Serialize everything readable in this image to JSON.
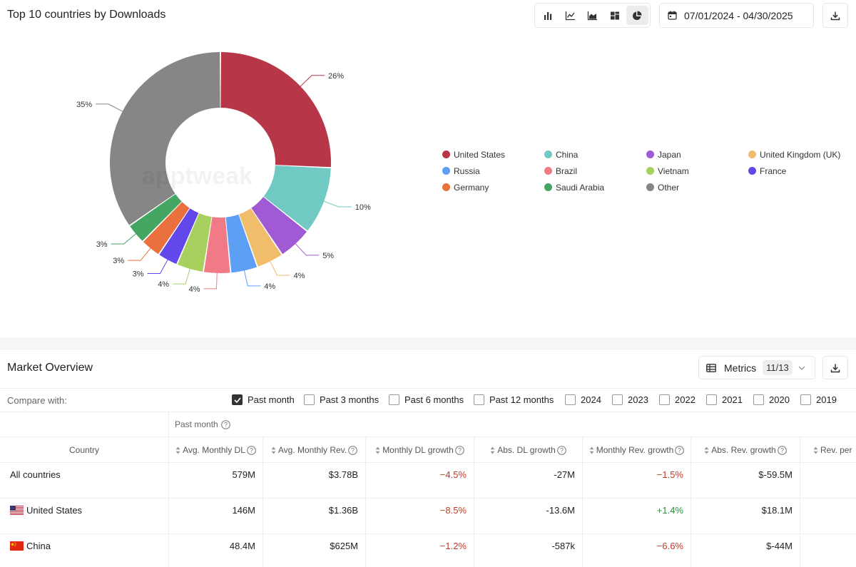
{
  "chart_panel": {
    "title": "Top 10 countries by Downloads",
    "date_range": "07/01/2024 - 04/30/2025",
    "view_buttons": [
      "bar-chart-icon",
      "line-chart-icon",
      "area-chart-icon",
      "treemap-icon",
      "pie-chart-icon"
    ],
    "active_view": "pie-chart-icon",
    "watermark": "apptweak"
  },
  "chart_data": {
    "type": "pie",
    "categories": [
      "United States",
      "China",
      "Japan",
      "United Kingdom (UK)",
      "Russia",
      "Brazil",
      "Vietnam",
      "France",
      "Germany",
      "Saudi Arabia",
      "Other"
    ],
    "values": [
      26,
      10,
      5,
      4,
      4,
      4,
      4,
      3,
      3,
      3,
      35
    ],
    "labels": [
      "26%",
      "10%",
      "5%",
      "4%",
      "4%",
      "4%",
      "4%",
      "3%",
      "3%",
      "3%",
      "35%"
    ],
    "colors": [
      "#b73748",
      "#71c9c3",
      "#a05ad3",
      "#f0bd6b",
      "#5d9ff5",
      "#f07b87",
      "#a8d05f",
      "#6247ea",
      "#ea713d",
      "#45a563",
      "#868686"
    ],
    "legend_position": "right"
  },
  "market_overview": {
    "title": "Market Overview",
    "metrics_label": "Metrics",
    "metrics_count": "11/13",
    "compare_label": "Compare with:",
    "compare_options": [
      {
        "label": "Past month",
        "checked": true
      },
      {
        "label": "Past 3 months",
        "checked": false
      },
      {
        "label": "Past 6 months",
        "checked": false
      },
      {
        "label": "Past 12 months",
        "checked": false
      },
      {
        "label": "2024",
        "checked": false
      },
      {
        "label": "2023",
        "checked": false
      },
      {
        "label": "2022",
        "checked": false
      },
      {
        "label": "2021",
        "checked": false
      },
      {
        "label": "2020",
        "checked": false
      },
      {
        "label": "2019",
        "checked": false
      }
    ],
    "group_label": "Past month",
    "columns": [
      "Country",
      "Avg. Monthly DL",
      "Avg. Monthly Rev.",
      "Monthly DL growth",
      "Abs. DL growth",
      "Monthly Rev. growth",
      "Abs. Rev. growth",
      "Rev. per"
    ],
    "rows": [
      {
        "country": "All countries",
        "flag": "",
        "cells": [
          "579M",
          "$3.78B",
          "−4.5%",
          "-27M",
          "−1.5%",
          "$-59.5M",
          ""
        ],
        "tones": [
          "",
          "",
          "neg",
          "",
          "neg",
          "",
          ""
        ]
      },
      {
        "country": "United States",
        "flag": "us",
        "cells": [
          "146M",
          "$1.36B",
          "−8.5%",
          "-13.6M",
          "+1.4%",
          "$18.1M",
          ""
        ],
        "tones": [
          "",
          "",
          "neg",
          "",
          "pos",
          "",
          ""
        ]
      },
      {
        "country": "China",
        "flag": "cn",
        "cells": [
          "48.4M",
          "$625M",
          "−1.2%",
          "-587k",
          "−6.6%",
          "$-44M",
          ""
        ],
        "tones": [
          "",
          "",
          "neg",
          "",
          "neg",
          "",
          ""
        ]
      }
    ]
  }
}
